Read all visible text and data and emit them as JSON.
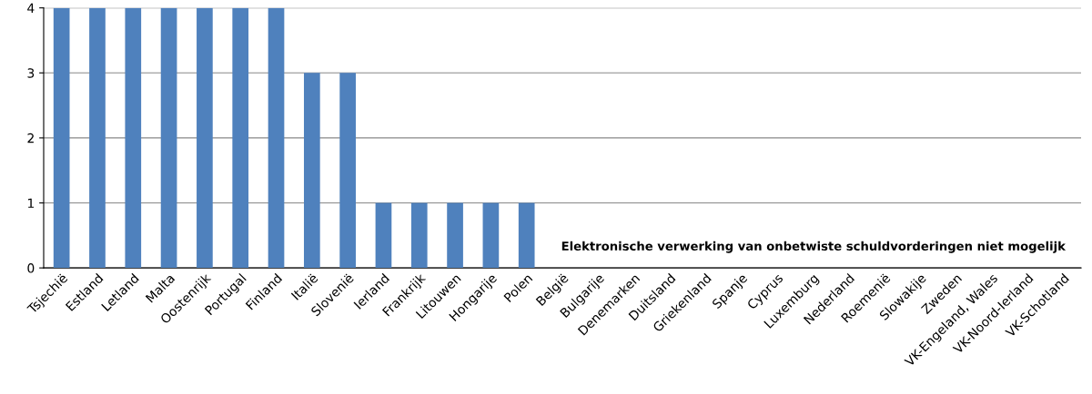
{
  "chart_data": {
    "type": "bar",
    "categories": [
      "Tsjechië",
      "Estland",
      "Letland",
      "Malta",
      "Oostenrijk",
      "Portugal",
      "Finland",
      "Italië",
      "Slovenië",
      "Ierland",
      "Frankrijk",
      "Litouwen",
      "Hongarije",
      "Polen",
      "België",
      "Bulgarije",
      "Denemarken",
      "Duitsland",
      "Griekenland",
      "Spanje",
      "Cyprus",
      "Luxemburg",
      "Nederland",
      "Roemenië",
      "Slowakije",
      "Zweden",
      "VK-Engeland, Wales",
      "VK-Noord-Ierland",
      "VK-Schotland"
    ],
    "values": [
      4,
      4,
      4,
      4,
      4,
      4,
      4,
      3,
      3,
      1,
      1,
      1,
      1,
      1,
      0,
      0,
      0,
      0,
      0,
      0,
      0,
      0,
      0,
      0,
      0,
      0,
      0,
      0,
      0
    ],
    "color": "#4f81bd",
    "ylim": [
      0,
      4
    ],
    "yticks": [
      0,
      1,
      2,
      3,
      4
    ],
    "grid": "y",
    "annotations": [
      "Elektronische verwerking van onbetwiste schuldvorderingen niet mogelijk"
    ]
  }
}
